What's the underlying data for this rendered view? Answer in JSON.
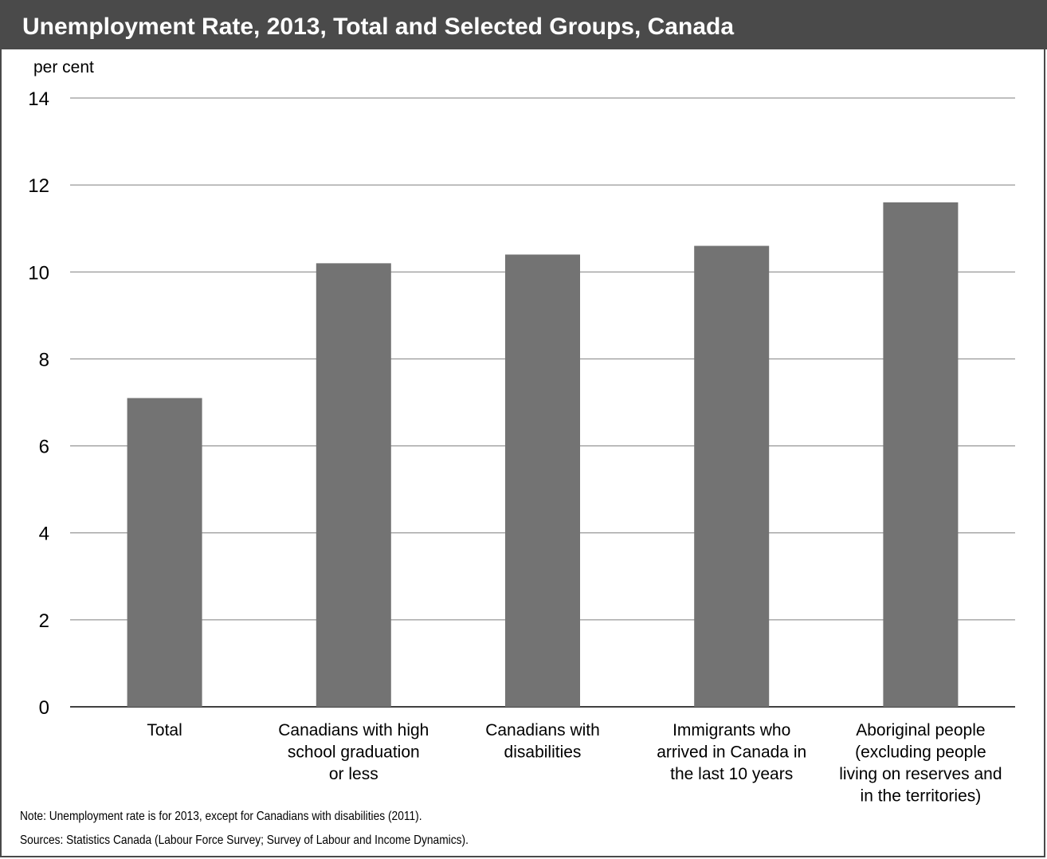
{
  "header": {
    "title": "Unemployment Rate, 2013, Total and Selected Groups, Canada"
  },
  "footer": {
    "note": "Note: Unemployment rate is for 2013, except for Canadians with disabilities (2011).",
    "sources": "Sources: Statistics Canada (Labour Force Survey; Survey of Labour and Income Dynamics)."
  },
  "colors": {
    "title_bar": "#4a4a4a",
    "bar": "#737373",
    "grid": "#7f7f7f"
  },
  "chart_data": {
    "type": "bar",
    "title": "Unemployment Rate, 2013, Total and Selected Groups, Canada",
    "ylabel": "per cent",
    "xlabel": "",
    "ylim": [
      0,
      14
    ],
    "yticks": [
      0,
      2,
      4,
      6,
      8,
      10,
      12,
      14
    ],
    "grid": true,
    "categories": [
      [
        "Total"
      ],
      [
        "Canadians with high",
        "school graduation",
        "or less"
      ],
      [
        "Canadians with",
        "disabilities"
      ],
      [
        "Immigrants who",
        "arrived in Canada in",
        "the last 10 years"
      ],
      [
        "Aboriginal people",
        "(excluding people",
        "living on reserves and",
        "in the territories)"
      ]
    ],
    "values": [
      7.1,
      10.2,
      10.4,
      10.6,
      11.6
    ]
  }
}
